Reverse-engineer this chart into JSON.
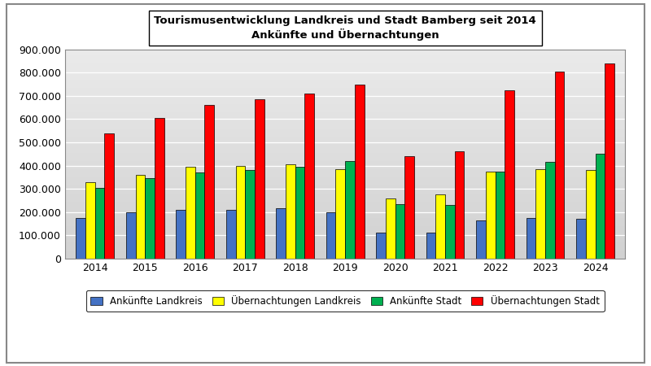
{
  "title_line1": "Tourismusentwicklung Landkreis und Stadt Bamberg seit 2014",
  "title_line2": "Ankünfte und Übernachtungen",
  "years": [
    2014,
    2015,
    2016,
    2017,
    2018,
    2019,
    2020,
    2021,
    2022,
    2023,
    2024
  ],
  "ankuenfte_landkreis": [
    175000,
    200000,
    210000,
    210000,
    215000,
    200000,
    110000,
    110000,
    165000,
    175000,
    170000
  ],
  "uebernachtungen_landkreis": [
    330000,
    360000,
    395000,
    400000,
    405000,
    385000,
    260000,
    275000,
    375000,
    385000,
    380000
  ],
  "ankuenfte_stadt": [
    305000,
    345000,
    370000,
    380000,
    395000,
    420000,
    235000,
    230000,
    375000,
    415000,
    450000
  ],
  "uebernachtungen_stadt": [
    540000,
    605000,
    660000,
    685000,
    710000,
    750000,
    440000,
    460000,
    725000,
    805000,
    840000
  ],
  "colors": {
    "ankuenfte_landkreis": "#4472C4",
    "uebernachtungen_landkreis": "#FFFF00",
    "ankuenfte_stadt": "#00B050",
    "uebernachtungen_stadt": "#FF0000"
  },
  "legend_labels": [
    "Ankünfte Landkreis",
    "Übernachtungen Landkreis",
    "Ankünfte Stadt",
    "Übernachtungen Stadt"
  ],
  "ylim": [
    0,
    900000
  ],
  "ytick_step": 100000,
  "outer_bg_color": "#FFFFFF",
  "plot_border_color": "#808080"
}
